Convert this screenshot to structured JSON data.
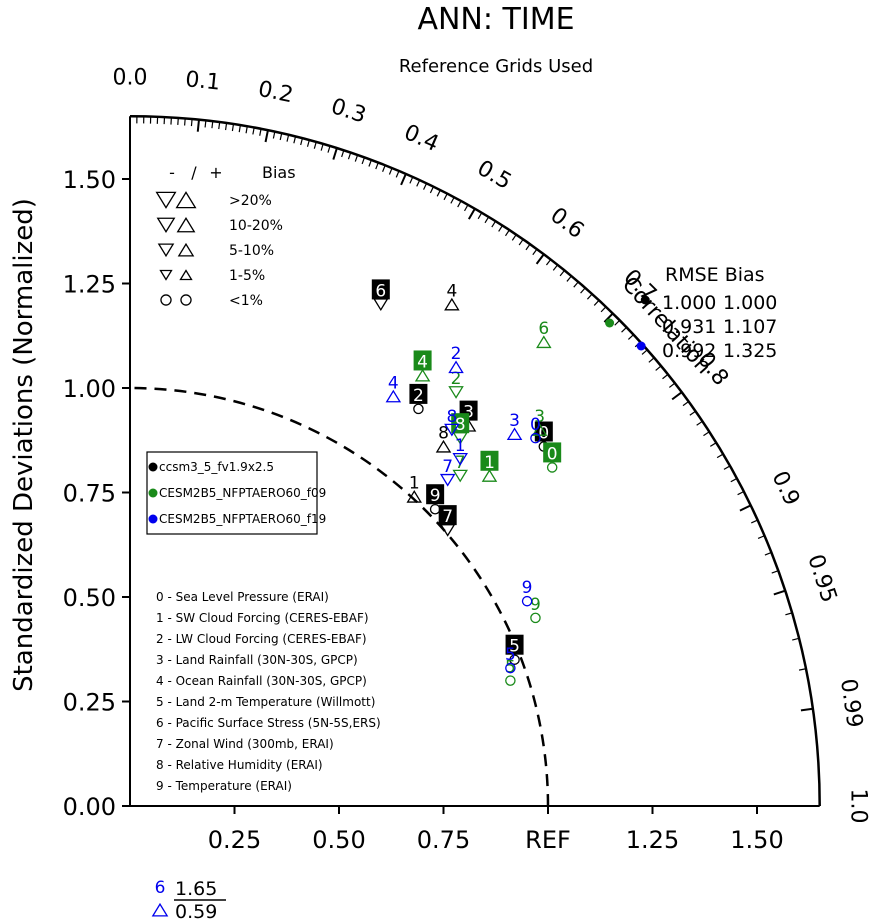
{
  "chart_data": {
    "type": "scatter",
    "title": "ANN: TIME",
    "subtitle": "Reference Grids Used",
    "ylabel": "Standardized Deviations (Normalized)",
    "xlim": [
      0,
      1.65
    ],
    "ylim": [
      0,
      1.65
    ],
    "std_ticks": [
      "0.00",
      "0.25",
      "0.50",
      "0.75",
      "1.00",
      "1.25",
      "1.50"
    ],
    "x_ticks": [
      "0.25",
      "0.50",
      "0.75",
      "REF",
      "1.25",
      "1.50"
    ],
    "corr_ticks": [
      {
        "r": 0.0,
        "label": "0.0"
      },
      {
        "r": 0.1,
        "label": "0.1"
      },
      {
        "r": 0.2,
        "label": "0.2"
      },
      {
        "r": 0.3,
        "label": "0.3"
      },
      {
        "r": 0.4,
        "label": "0.4"
      },
      {
        "r": 0.5,
        "label": "0.5"
      },
      {
        "r": 0.6,
        "label": "0.6"
      },
      {
        "r": 0.7,
        "label": "0.7"
      },
      {
        "r": 0.8,
        "label": "0.8"
      },
      {
        "r": 0.9,
        "label": "0.9"
      },
      {
        "r": 0.95,
        "label": "0.95"
      },
      {
        "r": 0.99,
        "label": "0.99"
      },
      {
        "r": 1.0,
        "label": "1.0"
      }
    ],
    "corr_label": "Correlation",
    "bias_legend": {
      "header": [
        "-",
        "/",
        "+",
        "Bias"
      ],
      "rows": [
        ">20%",
        "10-20%",
        "5-10%",
        "1-5%",
        "<1%"
      ]
    },
    "cases": [
      {
        "name": "ccsm3_5_fv1.9x2.5",
        "color": "#000000"
      },
      {
        "name": "CESM2B5_NFPTAERO60_f09",
        "color": "#1a8a1a"
      },
      {
        "name": "CESM2B5_NFPTAERO60_f19",
        "color": "#0000ee"
      }
    ],
    "variables": [
      "0 - Sea Level Pressure (ERAI)",
      "1 - SW Cloud Forcing (CERES-EBAF)",
      "2 - LW Cloud Forcing (CERES-EBAF)",
      "3 - Land Rainfall (30N-30S, GPCP)",
      "4 - Ocean Rainfall (30N-30S, GPCP)",
      "5 - Land 2-m Temperature (Willmott)",
      "6 - Pacific Surface Stress (5N-5S,ERS)",
      "7 - Zonal Wind (300mb, ERAI)",
      "8 - Relative Humidity (ERAI)",
      "9 - Temperature (ERAI)"
    ],
    "rmse_bias_header": "RMSE  Bias",
    "rmse_bias": [
      {
        "case": 0,
        "rmse": "1.000",
        "bias": "1.000"
      },
      {
        "case": 1,
        "rmse": "0.931",
        "bias": "1.107"
      },
      {
        "case": 2,
        "rmse": "0.992",
        "bias": "1.325"
      }
    ],
    "points": [
      {
        "case": 0,
        "var": "0",
        "x": 0.99,
        "y": 0.86,
        "marker": "circle",
        "boxed": true
      },
      {
        "case": 0,
        "var": "1",
        "x": 0.68,
        "y": 0.74,
        "marker": "tri_up",
        "boxed": false
      },
      {
        "case": 0,
        "var": "2",
        "x": 0.69,
        "y": 0.95,
        "marker": "circle",
        "boxed": true
      },
      {
        "case": 0,
        "var": "3",
        "x": 0.81,
        "y": 0.91,
        "marker": "tri_up",
        "boxed": true
      },
      {
        "case": 0,
        "var": "4",
        "x": 0.77,
        "y": 1.2,
        "marker": "tri_up",
        "boxed": false
      },
      {
        "case": 0,
        "var": "5",
        "x": 0.92,
        "y": 0.35,
        "marker": "circle",
        "boxed": true
      },
      {
        "case": 0,
        "var": "6",
        "x": 0.6,
        "y": 1.2,
        "marker": "tri_down",
        "boxed": true
      },
      {
        "case": 0,
        "var": "7",
        "x": 0.76,
        "y": 0.66,
        "marker": "tri_down",
        "boxed": true
      },
      {
        "case": 0,
        "var": "8",
        "x": 0.75,
        "y": 0.86,
        "marker": "tri_up",
        "boxed": false
      },
      {
        "case": 0,
        "var": "9",
        "x": 0.73,
        "y": 0.71,
        "marker": "circle",
        "boxed": true
      },
      {
        "case": 1,
        "var": "0",
        "x": 1.01,
        "y": 0.81,
        "marker": "circle",
        "boxed": true
      },
      {
        "case": 1,
        "var": "1",
        "x": 0.86,
        "y": 0.79,
        "marker": "tri_up",
        "boxed": true
      },
      {
        "case": 1,
        "var": "2",
        "x": 0.78,
        "y": 0.99,
        "marker": "tri_down",
        "boxed": false
      },
      {
        "case": 1,
        "var": "3",
        "x": 0.98,
        "y": 0.9,
        "marker": "tri_up",
        "boxed": false
      },
      {
        "case": 1,
        "var": "4",
        "x": 0.7,
        "y": 1.03,
        "marker": "tri_up",
        "boxed": true
      },
      {
        "case": 1,
        "var": "5",
        "x": 0.91,
        "y": 0.3,
        "marker": "circle",
        "boxed": false
      },
      {
        "case": 1,
        "var": "6",
        "x": 0.99,
        "y": 1.11,
        "marker": "tri_up",
        "boxed": false
      },
      {
        "case": 1,
        "var": "7",
        "x": 0.79,
        "y": 0.79,
        "marker": "tri_down",
        "boxed": false
      },
      {
        "case": 1,
        "var": "8",
        "x": 0.79,
        "y": 0.88,
        "marker": "tri_down",
        "boxed": true
      },
      {
        "case": 1,
        "var": "9",
        "x": 0.97,
        "y": 0.45,
        "marker": "circle",
        "boxed": false
      },
      {
        "case": 2,
        "var": "0",
        "x": 0.97,
        "y": 0.88,
        "marker": "circle",
        "boxed": false
      },
      {
        "case": 2,
        "var": "1",
        "x": 0.79,
        "y": 0.83,
        "marker": "tri_down",
        "boxed": false
      },
      {
        "case": 2,
        "var": "2",
        "x": 0.78,
        "y": 1.05,
        "marker": "tri_up",
        "boxed": false
      },
      {
        "case": 2,
        "var": "3",
        "x": 0.92,
        "y": 0.89,
        "marker": "tri_up",
        "boxed": false
      },
      {
        "case": 2,
        "var": "4",
        "x": 0.63,
        "y": 0.98,
        "marker": "tri_up",
        "boxed": false
      },
      {
        "case": 2,
        "var": "5",
        "x": 0.91,
        "y": 0.33,
        "marker": "circle",
        "boxed": false
      },
      {
        "case": 2,
        "var": "7",
        "x": 0.76,
        "y": 0.78,
        "marker": "tri_down",
        "boxed": false
      },
      {
        "case": 2,
        "var": "8",
        "x": 0.77,
        "y": 0.9,
        "marker": "tri_down",
        "boxed": false
      },
      {
        "case": 2,
        "var": "9",
        "x": 0.95,
        "y": 0.49,
        "marker": "circle",
        "boxed": false
      }
    ],
    "offscale": {
      "case": 2,
      "var": "6",
      "value1": "1.65",
      "value2": "0.59",
      "marker": "tri_up"
    }
  }
}
